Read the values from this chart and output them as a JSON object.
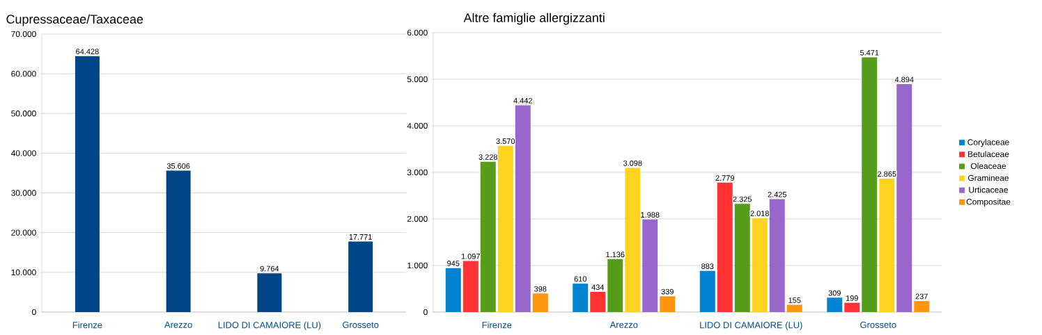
{
  "chart_data": [
    {
      "type": "bar",
      "title": "Cupressaceae/Taxaceae",
      "categories": [
        "Firenze",
        "Arezzo",
        "LIDO DI CAMAIORE (LU)",
        "Grosseto"
      ],
      "series": [
        {
          "color": "#004586",
          "values": [
            64428,
            35606,
            9764,
            17771
          ],
          "value_labels": [
            "64.428",
            "35.606",
            "9.764",
            "17.771"
          ]
        }
      ],
      "ylim": [
        0,
        70000
      ],
      "yticks": [
        {
          "value": 0,
          "label": "0"
        },
        {
          "value": 10000,
          "label": "10.000"
        },
        {
          "value": 20000,
          "label": "20.000"
        },
        {
          "value": 30000,
          "label": "30.000"
        },
        {
          "value": 40000,
          "label": "40.000"
        },
        {
          "value": 50000,
          "label": "50.000"
        },
        {
          "value": 60000,
          "label": "60.000"
        },
        {
          "value": 70000,
          "label": "70.000"
        }
      ],
      "grid": "y"
    },
    {
      "type": "bar",
      "title": "Altre famiglie allergizzanti",
      "categories": [
        "Firenze",
        "Arezzo",
        "LIDO DI CAMAIORE (LU)",
        "Grosseto"
      ],
      "series": [
        {
          "name": "Corylaceae",
          "color": "#0084d1",
          "values": [
            945,
            610,
            883,
            309
          ],
          "value_labels": [
            "945",
            "610",
            "883",
            "309"
          ]
        },
        {
          "name": "Betulaceae",
          "color": "#ff3333",
          "values": [
            1097,
            434,
            2779,
            199
          ],
          "value_labels": [
            "1.097",
            "434",
            "2.779",
            "199"
          ]
        },
        {
          "name": "Oleaceae",
          "color": "#579d1c",
          "values": [
            3228,
            1136,
            2325,
            5471
          ],
          "value_labels": [
            "3.228",
            "1.136",
            "2.325",
            "5.471"
          ]
        },
        {
          "name": "Gramineae",
          "color": "#ffd320",
          "values": [
            3570,
            3098,
            2018,
            2865
          ],
          "value_labels": [
            "3.570",
            "3.098",
            "2.018",
            "2.865"
          ]
        },
        {
          "name": "Urticaceae",
          "color": "#9966cc",
          "values": [
            4442,
            1988,
            2425,
            4894
          ],
          "value_labels": [
            "4.442",
            "1.988",
            "2.425",
            "4.894"
          ]
        },
        {
          "name": "Compositae",
          "color": "#ff950e",
          "values": [
            398,
            339,
            155,
            237
          ],
          "value_labels": [
            "398",
            "339",
            "155",
            "237"
          ]
        }
      ],
      "ylim": [
        0,
        6000
      ],
      "yticks": [
        {
          "value": 0,
          "label": "0"
        },
        {
          "value": 1000,
          "label": "1.000"
        },
        {
          "value": 2000,
          "label": "2.000"
        },
        {
          "value": 3000,
          "label": "3.000"
        },
        {
          "value": 4000,
          "label": "4.000"
        },
        {
          "value": 5000,
          "label": "5.000"
        },
        {
          "value": 6000,
          "label": "6.000"
        }
      ],
      "grid": "y",
      "legend": "right"
    }
  ]
}
